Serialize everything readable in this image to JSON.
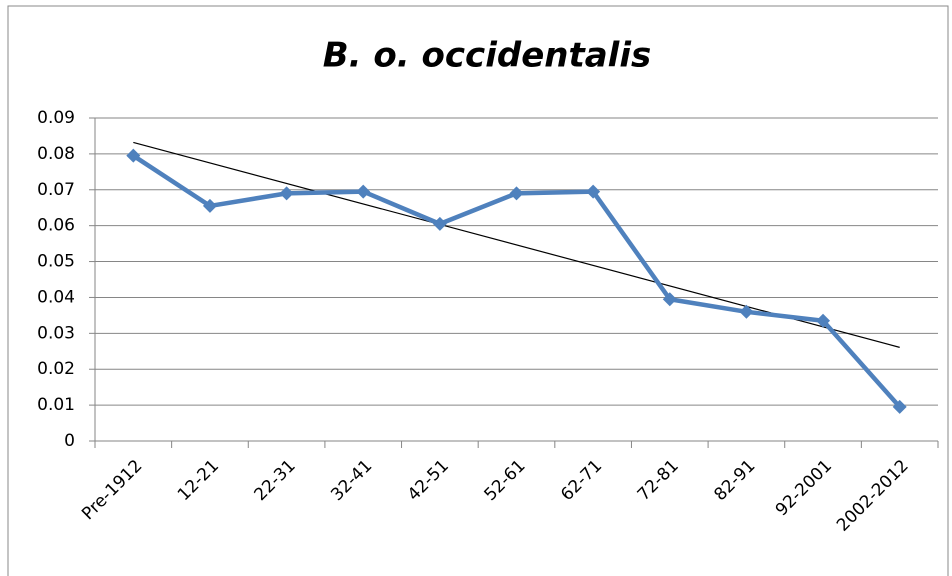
{
  "chart_data": {
    "type": "line",
    "title": "B. o. occidentalis",
    "categories": [
      "Pre-1912",
      "12-21",
      "22-31",
      "32-41",
      "42-51",
      "52-61",
      "62-71",
      "72-81",
      "82-91",
      "92-2001",
      "2002-2012"
    ],
    "values": [
      0.0795,
      0.0655,
      0.069,
      0.0695,
      0.0605,
      0.069,
      0.0695,
      0.0395,
      0.036,
      0.0335,
      0.0095
    ],
    "color": "#4f81bd",
    "trendline": "linear",
    "ylim": [
      0,
      0.09
    ],
    "yticks": [
      0,
      0.01,
      0.02,
      0.03,
      0.04,
      0.05,
      0.06,
      0.07,
      0.08,
      0.09
    ],
    "grid": true
  }
}
